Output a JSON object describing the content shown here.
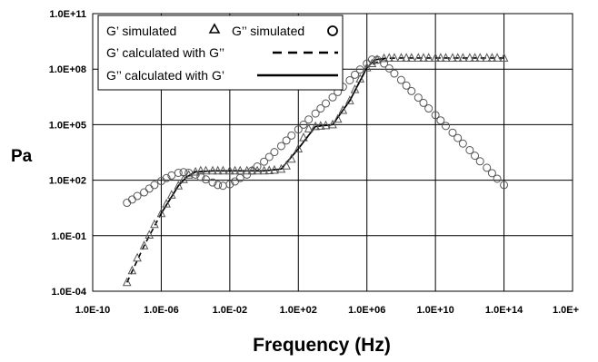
{
  "chart_data": {
    "type": "scatter",
    "xscale": "log",
    "yscale": "log",
    "xlim": [
      1e-10,
      1e+18
    ],
    "ylim": [
      0.0001,
      100000000000.0
    ],
    "grid": true,
    "ylabel": "Pa",
    "xlabel": "Frequency (Hz)",
    "x_tick_labels": [
      "1.0E-10",
      "1.0E-06",
      "1.0E-02",
      "1.0E+02",
      "1.0E+06",
      "1.0E+10",
      "1.0E+14",
      "1.0E+"
    ],
    "y_tick_labels": [
      "1.0E-04",
      "1.0E-01",
      "1.0E+02",
      "1.0E+05",
      "1.0E+08",
      "1.0E+11"
    ],
    "legend_position": "top-left",
    "legend": {
      "gp_sim": "G’ simulated",
      "gpp_sim": "G’’ simulated",
      "gp_calc": "G’ calculated with G’’",
      "gpp_calc": "G’’ calculated with G’"
    },
    "series": [
      {
        "name": "G’ simulated",
        "marker": "triangle",
        "style": "markers",
        "x": [
          1e-08,
          2e-08,
          4e-08,
          1e-07,
          2e-07,
          4e-07,
          1e-06,
          2e-06,
          4e-06,
          1e-05,
          2e-05,
          4e-05,
          0.0001,
          0.0002,
          0.0004,
          0.001,
          0.002,
          0.004,
          0.01,
          0.02,
          0.04,
          0.1,
          0.2,
          0.4,
          1,
          2,
          4,
          10,
          20,
          40,
          100,
          200,
          400,
          1000.0,
          2000.0,
          4000.0,
          10000.0,
          20000.0,
          40000.0,
          100000.0,
          200000.0,
          400000.0,
          1000000.0,
          2000000.0,
          4000000.0,
          10000000.0,
          20000000.0,
          40000000.0,
          100000000.0,
          200000000.0,
          400000000.0,
          1000000000.0,
          2000000000.0,
          4000000000.0,
          10000000000.0,
          20000000000.0,
          40000000000.0,
          100000000000.0,
          200000000000.0,
          400000000000.0,
          1000000000000.0,
          2000000000000.0,
          4000000000000.0,
          10000000000000.0,
          20000000000000.0,
          40000000000000.0,
          100000000000000.0
        ],
        "y": [
          0.0003,
          0.0013,
          0.0063,
          0.029,
          0.11,
          0.41,
          1.6,
          5.3,
          16,
          50,
          110,
          190,
          280,
          320,
          320,
          320,
          320,
          320,
          320,
          320,
          320,
          320,
          320,
          320,
          320,
          330,
          350,
          400,
          600,
          1400,
          5000,
          20000,
          60000,
          80000,
          85000,
          90000,
          100000,
          200000,
          600000,
          2000000,
          8000000,
          30000000,
          120000000,
          200000000,
          320000000,
          380000000,
          400000000,
          400000000,
          400000000,
          400000000,
          400000000,
          400000000,
          400000000,
          400000000,
          400000000,
          400000000,
          400000000,
          400000000,
          400000000,
          400000000,
          400000000,
          400000000,
          400000000,
          400000000,
          400000000,
          400000000,
          400000000
        ]
      },
      {
        "name": "G’’ simulated",
        "marker": "circle",
        "style": "markers",
        "x": [
          1e-08,
          2e-08,
          4e-08,
          1e-07,
          2e-07,
          4e-07,
          1e-06,
          2e-06,
          4e-06,
          1e-05,
          2e-05,
          4e-05,
          0.0001,
          0.0002,
          0.0004,
          0.001,
          0.002,
          0.004,
          0.01,
          0.02,
          0.04,
          0.1,
          0.2,
          0.4,
          1,
          2,
          4,
          10,
          20,
          40,
          100,
          200,
          400,
          1000.0,
          2000.0,
          4000.0,
          10000.0,
          20000.0,
          40000.0,
          100000.0,
          200000.0,
          400000.0,
          1000000.0,
          2000000.0,
          4000000.0,
          10000000.0,
          20000000.0,
          40000000.0,
          100000000.0,
          200000000.0,
          400000000.0,
          1000000000.0,
          2000000000.0,
          4000000000.0,
          10000000000.0,
          20000000000.0,
          40000000000.0,
          100000000000.0,
          200000000000.0,
          400000000000.0,
          1000000000000.0,
          2000000000000.0,
          4000000000000.0,
          10000000000000.0,
          20000000000000.0,
          40000000000000.0,
          100000000000000.0
        ],
        "y": [
          6,
          9,
          14,
          22,
          35,
          55,
          90,
          130,
          180,
          250,
          270,
          250,
          200,
          150,
          110,
          75,
          55,
          50,
          60,
          85,
          130,
          200,
          330,
          550,
          1000,
          1800,
          3300,
          7000,
          14000,
          26000,
          55000,
          100000,
          190000,
          400000,
          750000,
          1400000,
          3000000,
          5800000,
          11000000,
          25000000,
          50000000,
          95000000,
          200000000,
          330000000,
          320000000,
          200000000,
          110000000,
          58000000,
          26000000,
          13000000,
          6500000,
          2900000,
          1500000,
          750000,
          330000,
          170000,
          85000,
          37000,
          19000,
          9500,
          4200,
          2100,
          1050,
          470,
          240,
          120,
          55
        ]
      },
      {
        "name": "G’ calculated with G’’",
        "style": "dashed",
        "x": [
          1e-08,
          1e-07,
          1e-06,
          1e-05,
          3e-05,
          0.0001,
          0.001,
          0.01,
          0.1,
          1,
          10,
          100,
          1000.0,
          10000.0,
          100000.0,
          1000000.0,
          10000000.0,
          100000000.0,
          10000000000.0,
          1000000000000.0,
          100000000000000.0
        ],
        "y": [
          0.0003,
          0.029,
          1.6,
          50,
          150,
          280,
          320,
          320,
          320,
          320,
          400,
          5000,
          80000,
          100000,
          2000000,
          120000000,
          380000000,
          400000000,
          400000000,
          400000000,
          400000000
        ]
      },
      {
        "name": "G’’ calculated with G’",
        "style": "solid",
        "x": [
          1e-06,
          1e-05,
          3e-05,
          0.0001,
          0.001,
          0.01,
          0.1,
          1,
          10,
          100,
          1000.0,
          10000.0,
          100000.0,
          1000000.0,
          3000000.0,
          10000000.0
        ],
        "y": [
          1.6,
          50,
          150,
          280,
          320,
          320,
          320,
          320,
          400,
          5000,
          80000,
          100000,
          2000000,
          120000000,
          320000000,
          380000000
        ]
      }
    ]
  }
}
